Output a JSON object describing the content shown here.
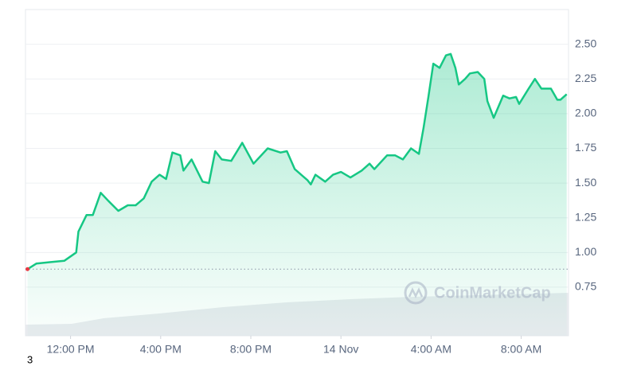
{
  "chart_data": {
    "type": "line",
    "x": [
      -1.91,
      -1.52,
      -0.92,
      -0.28,
      0.25,
      0.35,
      0.71,
      0.99,
      1.34,
      1.69,
      2.12,
      2.54,
      2.89,
      3.25,
      3.6,
      3.95,
      4.24,
      4.52,
      4.87,
      5.01,
      5.37,
      5.86,
      6.14,
      6.42,
      6.71,
      7.13,
      7.62,
      8.12,
      8.75,
      9.32,
      9.6,
      9.95,
      10.52,
      10.66,
      10.87,
      11.3,
      11.65,
      12.0,
      12.42,
      12.92,
      13.27,
      13.48,
      14.05,
      14.4,
      14.75,
      15.11,
      15.46,
      15.67,
      15.88,
      16.1,
      16.38,
      16.66,
      16.87,
      17.08,
      17.23,
      17.51,
      17.72,
      18.07,
      18.36,
      18.5,
      18.78,
      19.2,
      19.48,
      19.77,
      19.91,
      20.33,
      20.61,
      20.9,
      21.32,
      21.6,
      21.74,
      22.02
    ],
    "series": [
      {
        "color": "#16c784",
        "values": [
          0.88,
          0.92,
          0.93,
          0.94,
          1.0,
          1.15,
          1.27,
          1.27,
          1.43,
          1.37,
          1.3,
          1.34,
          1.34,
          1.39,
          1.51,
          1.56,
          1.53,
          1.72,
          1.7,
          1.59,
          1.67,
          1.51,
          1.5,
          1.73,
          1.67,
          1.66,
          1.79,
          1.64,
          1.75,
          1.72,
          1.73,
          1.6,
          1.52,
          1.49,
          1.56,
          1.51,
          1.56,
          1.58,
          1.54,
          1.59,
          1.64,
          1.6,
          1.7,
          1.7,
          1.67,
          1.75,
          1.71,
          1.9,
          2.12,
          2.36,
          2.33,
          2.42,
          2.43,
          2.33,
          2.21,
          2.25,
          2.29,
          2.3,
          2.25,
          2.09,
          1.97,
          2.13,
          2.11,
          2.12,
          2.07,
          2.18,
          2.25,
          2.18,
          2.18,
          2.1,
          2.1,
          2.14
        ]
      }
    ],
    "baseline": 0.88,
    "xlim": [
      -2,
      22.1
    ],
    "xticks": [
      {
        "value": 0,
        "label": "12:00 PM"
      },
      {
        "value": 4,
        "label": "4:00 PM"
      },
      {
        "value": 8,
        "label": "8:00 PM"
      },
      {
        "value": 12,
        "label": "14 Nov"
      },
      {
        "value": 16,
        "label": "4:00 AM"
      },
      {
        "value": 20,
        "label": "8:00 AM"
      }
    ],
    "ylim": [
      0.4,
      2.75
    ],
    "yticks": [
      {
        "value": 0.75,
        "label": "0.75"
      },
      {
        "value": 1,
        "label": "1.00"
      },
      {
        "value": 1.25,
        "label": "1.25"
      },
      {
        "value": 1.5,
        "label": "1.50"
      },
      {
        "value": 1.75,
        "label": "1.75"
      },
      {
        "value": 2,
        "label": "2.00"
      },
      {
        "value": 2.25,
        "label": "2.25"
      },
      {
        "value": 2.5,
        "label": "2.50"
      }
    ],
    "grid": true,
    "watermark": "CoinMarketCap",
    "corner_text": "3"
  }
}
